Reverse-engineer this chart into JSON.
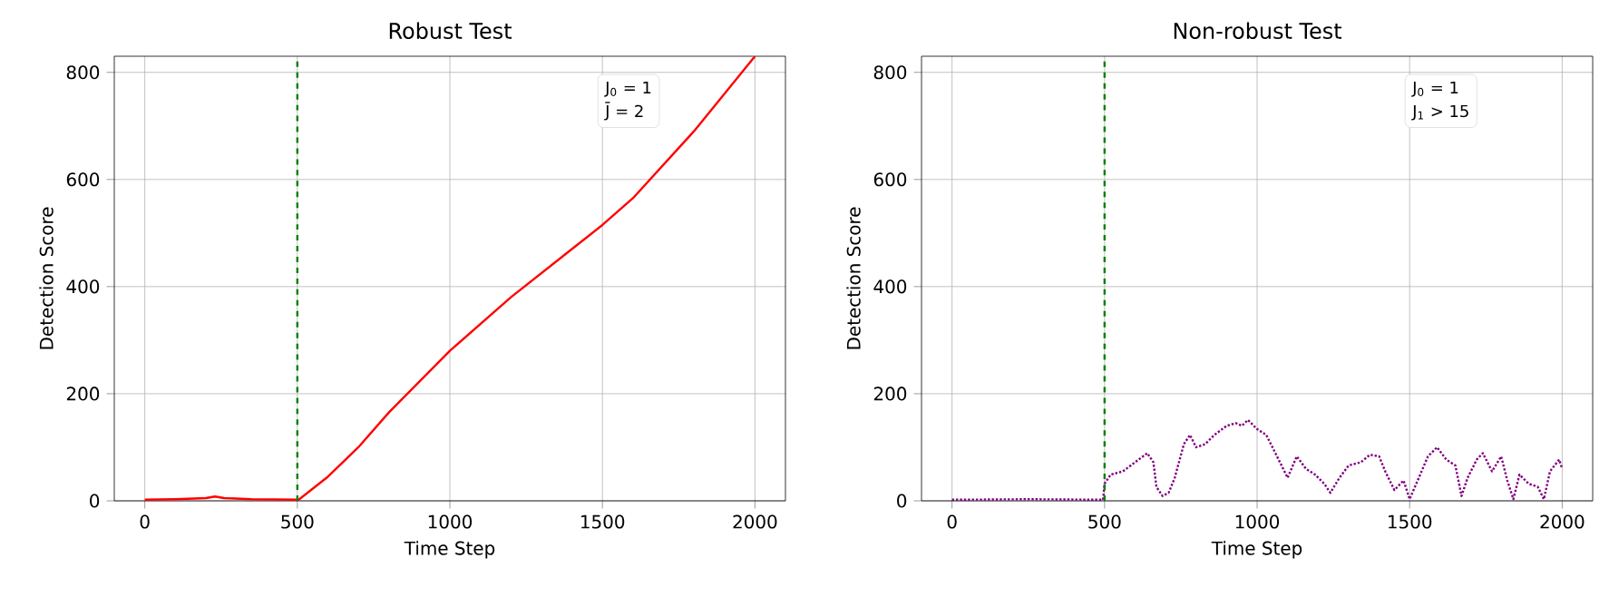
{
  "chart_data": [
    {
      "type": "line",
      "title": "Robust Test",
      "xlabel": "Time Step",
      "ylabel": "Detection Score",
      "xlim": [
        -100,
        2100
      ],
      "ylim": [
        0,
        830
      ],
      "xticks": [
        0,
        500,
        1000,
        1500,
        2000
      ],
      "yticks": [
        0,
        200,
        400,
        600,
        800
      ],
      "grid": true,
      "series": [
        {
          "color": "#ff0000",
          "line_style": "solid",
          "x": [
            0,
            100,
            200,
            230,
            260,
            350,
            495,
            500,
            600,
            700,
            800,
            1000,
            1200,
            1400,
            1500,
            1600,
            1800,
            2000
          ],
          "values": [
            2,
            3,
            5,
            8,
            5,
            3,
            2,
            0,
            45,
            100,
            165,
            280,
            380,
            470,
            515,
            565,
            690,
            830
          ]
        }
      ],
      "ref_lines": [
        {
          "axis": "x",
          "value": 500,
          "color": "#008000",
          "line_style": "dashed"
        }
      ],
      "annotations": [
        "J$_{0}$ = 1",
        "J̄ = 2"
      ]
    },
    {
      "type": "line",
      "title": "Non-robust Test",
      "xlabel": "Time Step",
      "ylabel": "Detection Score",
      "xlim": [
        -100,
        2100
      ],
      "ylim": [
        0,
        830
      ],
      "xticks": [
        0,
        500,
        1000,
        1500,
        2000
      ],
      "yticks": [
        0,
        200,
        400,
        600,
        800
      ],
      "grid": true,
      "series": [
        {
          "color": "#800080",
          "line_style": "dotted",
          "x": [
            0,
            250,
            495,
            500,
            520,
            560,
            600,
            640,
            660,
            670,
            690,
            710,
            730,
            760,
            780,
            800,
            830,
            860,
            900,
            930,
            950,
            970,
            1000,
            1030,
            1060,
            1080,
            1100,
            1130,
            1160,
            1190,
            1220,
            1240,
            1270,
            1300,
            1340,
            1370,
            1400,
            1420,
            1450,
            1480,
            1500,
            1530,
            1560,
            1590,
            1620,
            1650,
            1670,
            1690,
            1720,
            1740,
            1770,
            1800,
            1820,
            1840,
            1860,
            1890,
            1920,
            1940,
            1960,
            1990,
            2000
          ],
          "values": [
            2,
            3,
            2,
            32,
            49,
            55,
            72,
            89,
            72,
            26,
            9,
            15,
            43,
            106,
            123,
            100,
            106,
            123,
            140,
            145,
            140,
            151,
            134,
            123,
            89,
            66,
            43,
            83,
            60,
            49,
            32,
            15,
            43,
            66,
            72,
            86,
            83,
            55,
            20,
            38,
            3,
            43,
            83,
            100,
            77,
            66,
            9,
            43,
            77,
            89,
            55,
            83,
            38,
            3,
            49,
            32,
            26,
            3,
            55,
            77,
            60
          ]
        }
      ],
      "ref_lines": [
        {
          "axis": "x",
          "value": 500,
          "color": "#008000",
          "line_style": "dashed"
        }
      ],
      "annotations": [
        "J$_{0}$ = 1",
        "J$_{1}$ > 15"
      ]
    }
  ]
}
